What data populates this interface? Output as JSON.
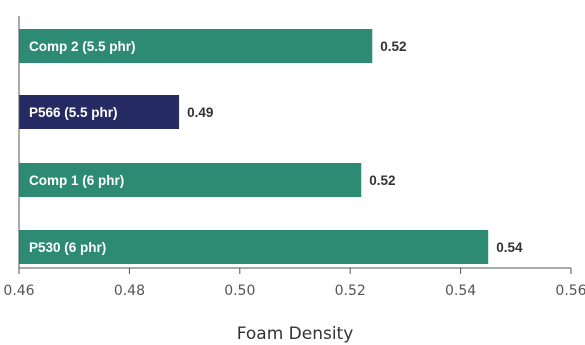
{
  "chart_data": {
    "type": "bar",
    "orientation": "horizontal",
    "categories": [
      "Comp 2 (5.5 phr)",
      "P566 (5.5 phr)",
      "Comp 1 (6 phr)",
      "P530 (6 phr)"
    ],
    "values": [
      0.524,
      0.489,
      0.522,
      0.545
    ],
    "value_labels": [
      "0.52",
      "0.49",
      "0.52",
      "0.54"
    ],
    "bar_colors": [
      "#2e8b73",
      "#252a62",
      "#2e8b73",
      "#2e8b73"
    ],
    "xlabel": "Foam Density",
    "ylabel": "",
    "title": "",
    "xlim": [
      0.46,
      0.56
    ],
    "x_ticks": [
      "0.46",
      "0.48",
      "0.50",
      "0.52",
      "0.54",
      "0.56"
    ],
    "grid": false,
    "legend": "none"
  }
}
